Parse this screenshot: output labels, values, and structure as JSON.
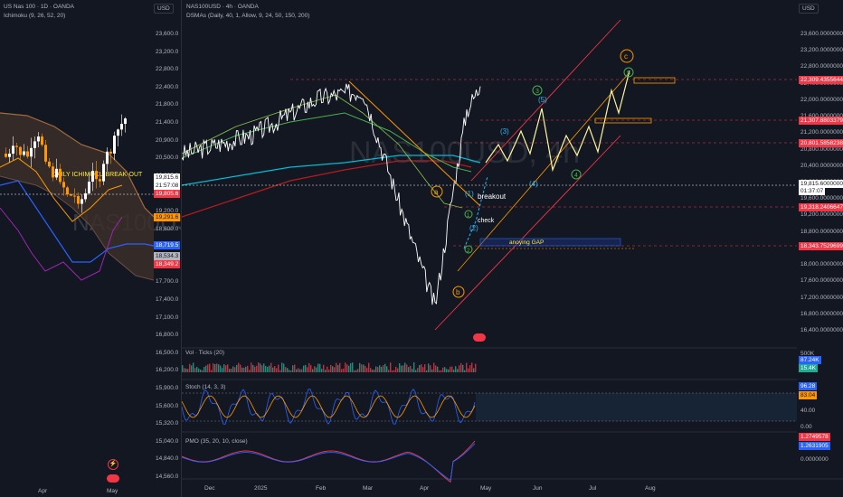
{
  "left": {
    "title": "US Nas 100 · 1D · OANDA",
    "indicator": "Ichimoku (9, 26, 52, 20)",
    "watermark": "NAS100USD, 1D",
    "usd": "USD",
    "annotation": "DAILY ICHIMOKU BREAK-OUT",
    "price_axis": [
      "23,600.0",
      "23,200.0",
      "22,800.0",
      "22,400.0",
      "21,800.0",
      "21,400.0",
      "20,900.0",
      "20,500.0",
      "20,000.0",
      "19,600.0",
      "19,200.0",
      "18,800.0",
      "18,400.0",
      "18,100.0",
      "17,700.0",
      "17,400.0",
      "17,100.0",
      "16,800.0",
      "16,500.0",
      "16,200.0",
      "15,900.0",
      "15,600.0",
      "15,320.0",
      "15,040.0",
      "14,840.0",
      "14,560.0"
    ],
    "badges": [
      {
        "text": "19,815.6",
        "color": "#ffffff",
        "fg": "#131722"
      },
      {
        "text": "21:57:08",
        "color": "#ffffff",
        "fg": "#131722"
      },
      {
        "text": "19,805.6",
        "color": "#f23645",
        "fg": "#ffffff"
      },
      {
        "text": "19,291.6",
        "color": "#ff9800",
        "fg": "#131722"
      },
      {
        "text": "18,719.5",
        "color": "#2962ff",
        "fg": "#ffffff"
      },
      {
        "text": "18,534.3",
        "color": "#b2b5be",
        "fg": "#131722"
      },
      {
        "text": "18,349.2",
        "color": "#f23645",
        "fg": "#ffffff"
      }
    ],
    "time_axis": [
      "Apr",
      "May"
    ]
  },
  "right": {
    "title": "NAS100USD · 4h · OANDA",
    "indicator": "DSMAs (Daily, 40, 1, Allow, 9, 24, 50, 150, 200)",
    "watermark": "NAS100USD, 4h",
    "usd": "USD",
    "price_axis": [
      "23,600.0000000",
      "23,200.0000000",
      "22,800.0000000",
      "22,400.0000000",
      "22,000.0000000",
      "21,600.0000000",
      "21,200.0000000",
      "20,800.0000000",
      "20,400.0000000",
      "20,000.0000000",
      "19,600.0000000",
      "19,200.0000000",
      "18,800.0000000",
      "18,400.0000000",
      "18,000.0000000",
      "17,600.0000000",
      "17,200.0000000",
      "16,800.0000000",
      "16,400.0000000"
    ],
    "badges": [
      {
        "text": "22,309.4355644",
        "color": "#f23645",
        "fg": "#ffffff"
      },
      {
        "text": "21,307.8803379",
        "color": "#f23645",
        "fg": "#ffffff"
      },
      {
        "text": "20,801.5858238",
        "color": "#f23645",
        "fg": "#ffffff"
      },
      {
        "text": "19,815.6000000",
        "color": "#ffffff",
        "fg": "#131722"
      },
      {
        "text": "01:37:07",
        "color": "#ffffff",
        "fg": "#131722"
      },
      {
        "text": "19,318.2406647",
        "color": "#f23645",
        "fg": "#ffffff"
      },
      {
        "text": "18,343.7529699",
        "color": "#f23645",
        "fg": "#ffffff"
      }
    ],
    "time_axis": [
      "Dec",
      "2025",
      "Feb",
      "Mar",
      "Apr",
      "May",
      "Jun",
      "Jul",
      "Aug"
    ],
    "annotations": {
      "breakout": "breakout",
      "check": "check",
      "gap": "anoying GAP",
      "wave_a": "a",
      "wave_b": "b",
      "wave_c": "c",
      "w1": "(1)",
      "w2": "(2)",
      "w3": "(3)",
      "w4": "(4)",
      "w5": "(5)",
      "g1": "1",
      "g2": "2",
      "g3": "3",
      "g4": "4",
      "g5": "5"
    },
    "vol": {
      "label": "Vol · Ticks (20)",
      "axis": [
        "500K"
      ],
      "badges": [
        {
          "text": "87.24K",
          "color": "#2962ff",
          "fg": "#ffffff"
        },
        {
          "text": "15.4K",
          "color": "#22ab94",
          "fg": "#ffffff"
        }
      ]
    },
    "stoch": {
      "label": "Stoch (14, 3, 3)",
      "axis": [
        "40.00",
        "0.00"
      ],
      "badges": [
        {
          "text": "96.28",
          "color": "#2962ff",
          "fg": "#ffffff"
        },
        {
          "text": "83.04",
          "color": "#ff9800",
          "fg": "#131722"
        }
      ]
    },
    "pmo": {
      "label": "PMO (35, 20, 10, close)",
      "axis": [
        "0.0000000"
      ],
      "badges": [
        {
          "text": "1.2749578",
          "color": "#f23645",
          "fg": "#ffffff"
        },
        {
          "text": "1.2631905",
          "color": "#2962ff",
          "fg": "#ffffff"
        }
      ]
    }
  },
  "chart_data": [
    {
      "type": "line",
      "title": "NAS100USD · 4h · OANDA",
      "x": [
        "Dec",
        "2025",
        "Feb",
        "Mar",
        "Apr",
        "May",
        "Jun",
        "Jul",
        "Aug"
      ],
      "series": [
        {
          "name": "",
          "values": [
            20700,
            21200,
            22100,
            22300,
            19500,
            16900,
            19800,
            21800,
            22400
          ]
        }
      ],
      "ylim": [
        16300,
        23700
      ]
    }
  ]
}
